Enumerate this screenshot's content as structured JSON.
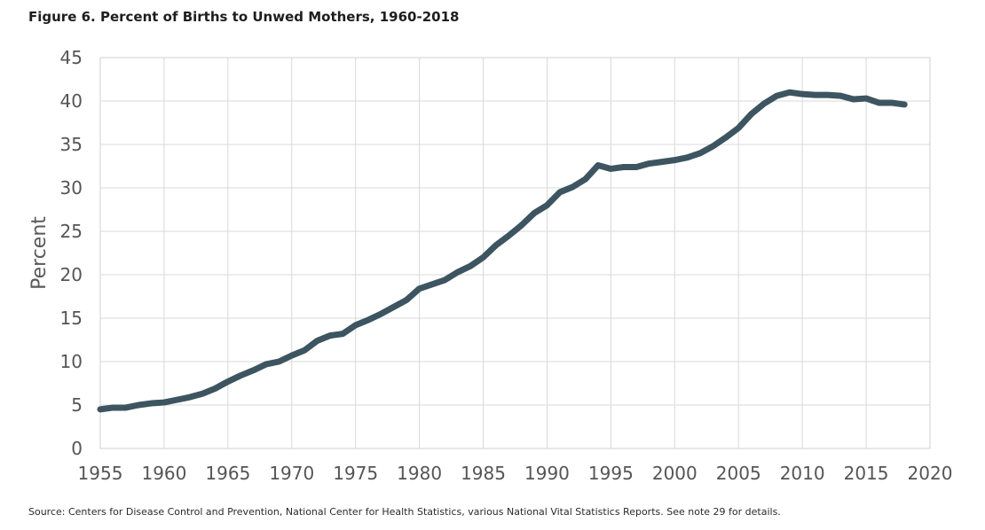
{
  "figure": {
    "title": "Figure 6. Percent of Births to Unwed Mothers, 1960-2018",
    "source": "Source: Centers for Disease Control and Prevention, National Center for Health Statistics, various National Vital Statistics Reports. See note 29 for details."
  },
  "chart_data": {
    "type": "line",
    "title": "Figure 6. Percent of Births to Unwed Mothers, 1960-2018",
    "xlabel": "",
    "ylabel": "Percent",
    "xlim": [
      1955,
      2020
    ],
    "ylim": [
      0,
      45
    ],
    "xticks": [
      1955,
      1960,
      1965,
      1970,
      1975,
      1980,
      1985,
      1990,
      1995,
      2000,
      2005,
      2010,
      2015,
      2020
    ],
    "yticks": [
      0,
      5,
      10,
      15,
      20,
      25,
      30,
      35,
      40,
      45
    ],
    "grid": true,
    "legend": "none",
    "line_color": "#3d5560",
    "series": [
      {
        "x": [
          1955,
          1956,
          1957,
          1958,
          1959,
          1960,
          1961,
          1962,
          1963,
          1964,
          1965,
          1966,
          1967,
          1968,
          1969,
          1970,
          1971,
          1972,
          1973,
          1974,
          1975,
          1976,
          1977,
          1978,
          1979,
          1980,
          1981,
          1982,
          1983,
          1984,
          1985,
          1986,
          1987,
          1988,
          1989,
          1990,
          1991,
          1992,
          1993,
          1994,
          1995,
          1996,
          1997,
          1998,
          1999,
          2000,
          2001,
          2002,
          2003,
          2004,
          2005,
          2006,
          2007,
          2008,
          2009,
          2010,
          2011,
          2012,
          2013,
          2014,
          2015,
          2016,
          2017,
          2018
        ],
        "values": [
          4.5,
          4.7,
          4.7,
          5.0,
          5.2,
          5.3,
          5.6,
          5.9,
          6.3,
          6.9,
          7.7,
          8.4,
          9.0,
          9.7,
          10.0,
          10.7,
          11.3,
          12.4,
          13.0,
          13.2,
          14.2,
          14.8,
          15.5,
          16.3,
          17.1,
          18.4,
          18.9,
          19.4,
          20.3,
          21.0,
          22.0,
          23.4,
          24.5,
          25.7,
          27.1,
          28.0,
          29.5,
          30.1,
          31.0,
          32.6,
          32.2,
          32.4,
          32.4,
          32.8,
          33.0,
          33.2,
          33.5,
          34.0,
          34.8,
          35.8,
          36.9,
          38.5,
          39.7,
          40.6,
          41.0,
          40.8,
          40.7,
          40.7,
          40.6,
          40.2,
          40.3,
          39.8,
          39.8,
          39.6
        ]
      }
    ]
  }
}
